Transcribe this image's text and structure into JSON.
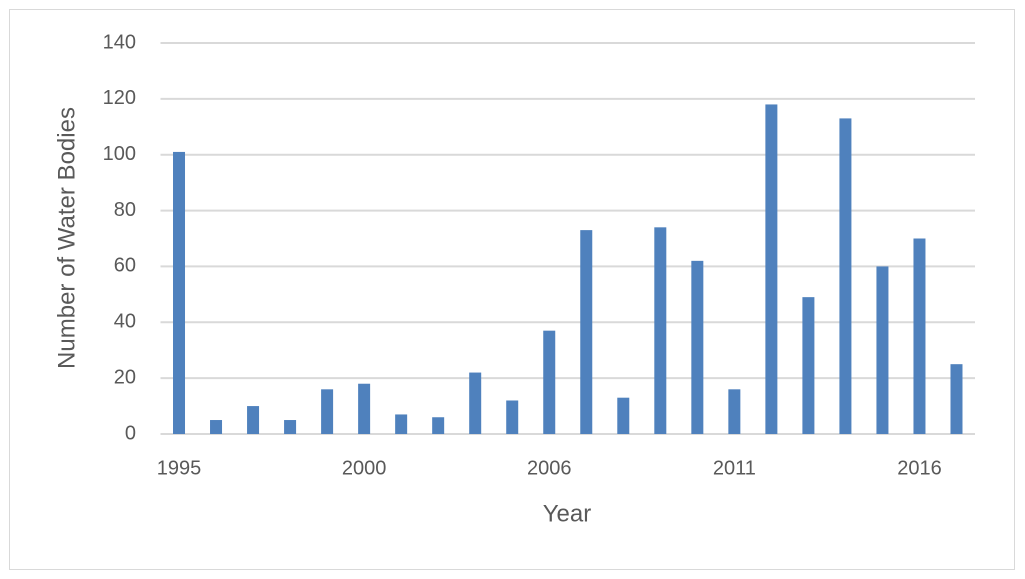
{
  "chart_data": {
    "type": "bar",
    "x_label": "Year",
    "y_label": "Number of Water Bodies",
    "categories": [
      "1995",
      null,
      null,
      null,
      null,
      "2000",
      null,
      null,
      null,
      null,
      "2006",
      null,
      null,
      null,
      null,
      "2011",
      null,
      null,
      null,
      null,
      "2016",
      null
    ],
    "values": [
      101,
      5,
      10,
      5,
      16,
      18,
      7,
      6,
      22,
      12,
      37,
      73,
      13,
      74,
      62,
      16,
      118,
      49,
      113,
      60,
      70,
      25
    ],
    "color": "#4f81bd",
    "ylim": [
      0,
      140
    ],
    "yticks": [
      0,
      20,
      40,
      60,
      80,
      100,
      120,
      140
    ],
    "grid": true
  }
}
